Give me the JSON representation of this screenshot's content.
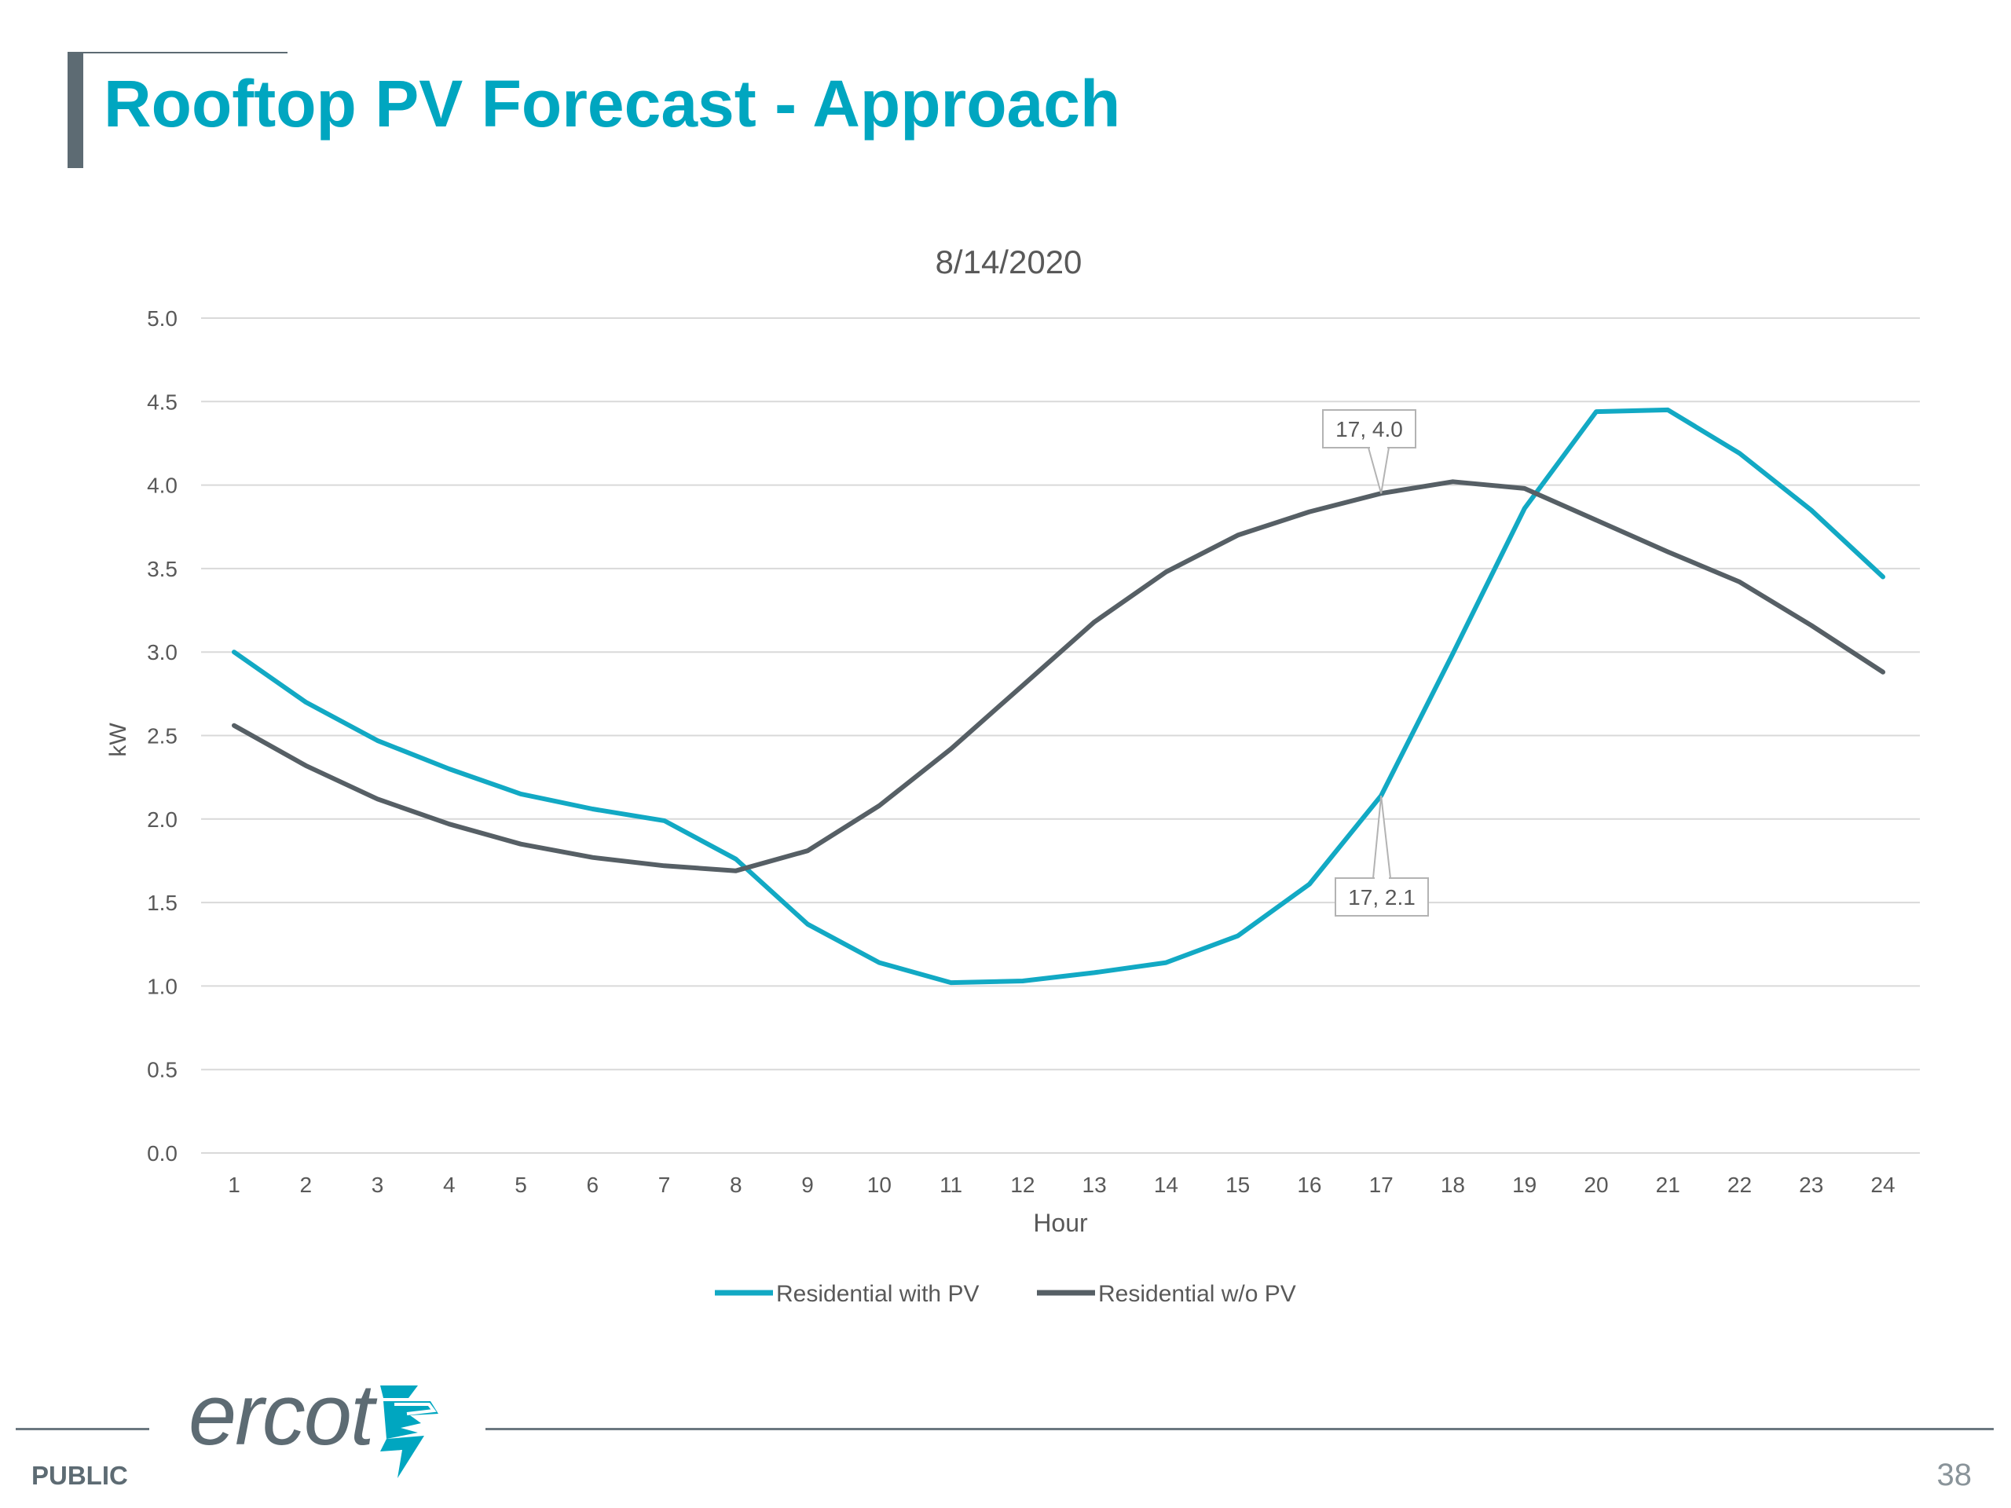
{
  "slide": {
    "title": "Rooftop PV Forecast - Approach",
    "footer_label": "PUBLIC",
    "page_number": "38",
    "logo_text": "ercot"
  },
  "colors": {
    "title": "#00a6c0",
    "accent": "#5d6b73",
    "series_with_pv": "#12a9c4",
    "series_without_pv": "#565f65",
    "gridline": "#d9d9d9"
  },
  "chart_data": {
    "type": "line",
    "title": "8/14/2020",
    "xlabel": "Hour",
    "ylabel": "kW",
    "categories": [
      "1",
      "2",
      "3",
      "4",
      "5",
      "6",
      "7",
      "8",
      "9",
      "10",
      "11",
      "12",
      "13",
      "14",
      "15",
      "16",
      "17",
      "18",
      "19",
      "20",
      "21",
      "22",
      "23",
      "24"
    ],
    "ylim": [
      0,
      5
    ],
    "yticks": [
      "0.0",
      "0.5",
      "1.0",
      "1.5",
      "2.0",
      "2.5",
      "3.0",
      "3.5",
      "4.0",
      "4.5",
      "5.0"
    ],
    "grid": true,
    "legend_position": "bottom",
    "series": [
      {
        "name": "Residential with PV",
        "color": "#12a9c4",
        "values": [
          3.0,
          2.7,
          2.47,
          2.3,
          2.15,
          2.06,
          1.99,
          1.76,
          1.37,
          1.14,
          1.02,
          1.03,
          1.08,
          1.14,
          1.3,
          1.61,
          2.14,
          2.99,
          3.86,
          4.44,
          4.45,
          4.19,
          3.85,
          3.45
        ]
      },
      {
        "name": "Residential w/o PV",
        "color": "#565f65",
        "values": [
          2.56,
          2.32,
          2.12,
          1.97,
          1.85,
          1.77,
          1.72,
          1.69,
          1.81,
          2.08,
          2.42,
          2.8,
          3.18,
          3.48,
          3.7,
          3.84,
          3.95,
          4.02,
          3.98,
          3.79,
          3.6,
          3.42,
          3.16,
          2.88
        ]
      }
    ],
    "annotations": [
      {
        "label": "17, 4.0",
        "series": 1,
        "x": 17,
        "y": 3.95,
        "placement": "above"
      },
      {
        "label": "17, 2.1",
        "series": 0,
        "x": 17,
        "y": 2.14,
        "placement": "below"
      }
    ]
  }
}
